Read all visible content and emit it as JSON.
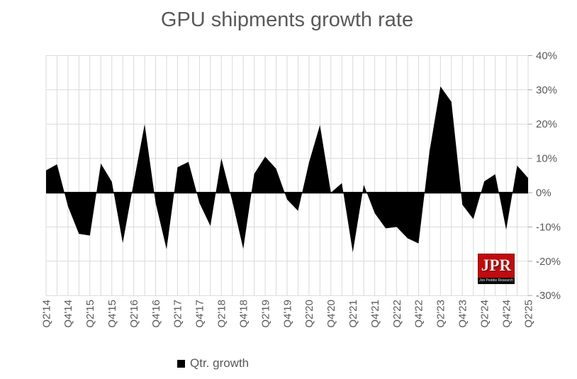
{
  "title": "GPU shipments growth rate",
  "legend": {
    "label": "Qtr. growth",
    "swatch_color": "#000000"
  },
  "logo": {
    "text": "JPR",
    "subtext": "Jon Peddie Research",
    "bg_color": "#c00b10"
  },
  "colors": {
    "area_fill": "#000000",
    "zero_line": "#000000",
    "gridline": "#d9d9d9",
    "tick_mark": "#a6a6a6",
    "axis_text": "#595959",
    "title_text": "#595959",
    "background": "#ffffff"
  },
  "chart_data": {
    "type": "area",
    "title": "GPU shipments growth rate",
    "xlabel": "",
    "ylabel": "",
    "ylim": [
      -30,
      40
    ],
    "grid": "both",
    "legend_position": "bottom",
    "x_tick_step": 2,
    "y_tick_values": [
      40,
      30,
      20,
      10,
      0,
      -10,
      -20,
      -30
    ],
    "y_tick_labels": [
      "40%",
      "30%",
      "20%",
      "10%",
      "0%",
      "-10%",
      "-20%",
      "-30%"
    ],
    "x": [
      "Q2'14",
      "Q3'14",
      "Q4'14",
      "Q1'15",
      "Q2'15",
      "Q3'15",
      "Q4'15",
      "Q1'16",
      "Q2'16",
      "Q3'16",
      "Q4'16",
      "Q1'17",
      "Q2'17",
      "Q3'17",
      "Q4'17",
      "Q1'18",
      "Q2'18",
      "Q3'18",
      "Q4'18",
      "Q1'19",
      "Q2'19",
      "Q3'19",
      "Q4'19",
      "Q1'20",
      "Q2'20",
      "Q3'20",
      "Q4'20",
      "Q1'21",
      "Q2'21",
      "Q3'21",
      "Q4'21",
      "Q1'22",
      "Q2'22",
      "Q3'22",
      "Q4'22",
      "Q1'23",
      "Q2'23",
      "Q3'23",
      "Q4'23",
      "Q1'24",
      "Q2'24",
      "Q3'24",
      "Q4'24",
      "Q1'25",
      "Q2'25"
    ],
    "x_tick_labels_shown": [
      "Q2'14",
      "Q4'14",
      "Q2'15",
      "Q4'15",
      "Q2'16",
      "Q4'16",
      "Q2'17",
      "Q4'17",
      "Q2'18",
      "Q4'18",
      "Q2'19",
      "Q4'19",
      "Q2'20",
      "Q4'20",
      "Q2'21",
      "Q4'21",
      "Q2'22",
      "Q4'22",
      "Q2'23",
      "Q4'23",
      "Q2'24",
      "Q4'24",
      "Q2'25"
    ],
    "series": [
      {
        "name": "Qtr. growth",
        "unit": "%",
        "values": [
          6.5,
          8.3,
          -4.0,
          -12.0,
          -12.5,
          8.5,
          3.2,
          -14.7,
          3.0,
          20.0,
          -3.0,
          -16.5,
          7.4,
          9.0,
          -3.0,
          -9.7,
          10.0,
          -2.5,
          -16.4,
          5.5,
          10.5,
          7.0,
          -2.0,
          -5.3,
          8.8,
          19.7,
          0.0,
          2.8,
          -17.4,
          2.3,
          -6.0,
          -10.4,
          -10.0,
          -13.3,
          -14.8,
          12.0,
          31.0,
          26.5,
          -3.5,
          -7.7,
          3.3,
          5.4,
          -10.8,
          7.9,
          4.3
        ]
      }
    ]
  }
}
